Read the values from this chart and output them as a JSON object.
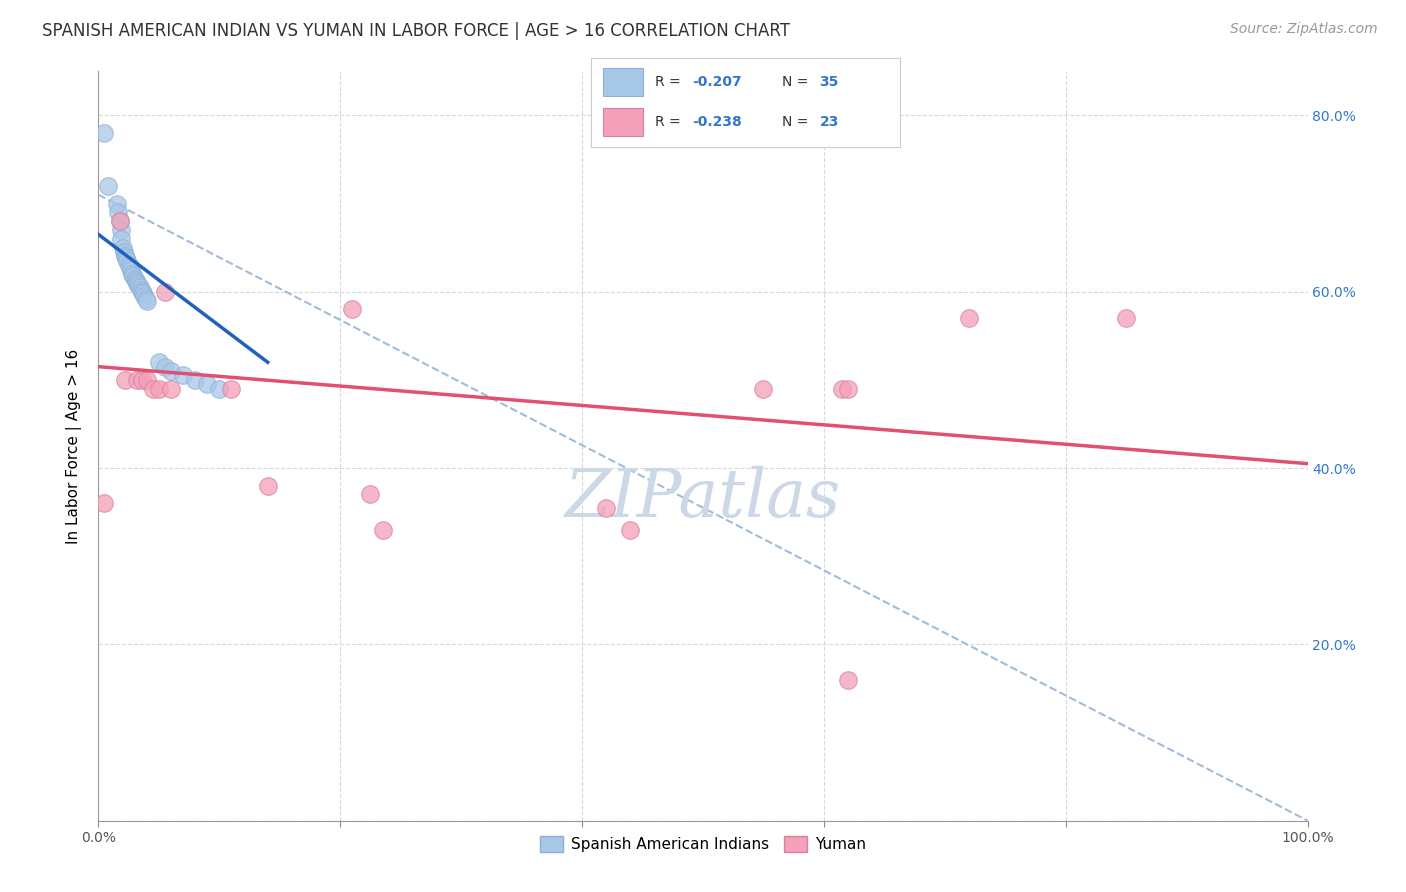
{
  "title": "SPANISH AMERICAN INDIAN VS YUMAN IN LABOR FORCE | AGE > 16 CORRELATION CHART",
  "source": "Source: ZipAtlas.com",
  "ylabel": "In Labor Force | Age > 16",
  "xlim": [
    0.0,
    1.0
  ],
  "ylim": [
    0.0,
    0.85
  ],
  "yticks": [
    0.0,
    0.2,
    0.4,
    0.6,
    0.8
  ],
  "ytick_labels": [
    "",
    "20.0%",
    "40.0%",
    "60.0%",
    "80.0%"
  ],
  "xticks": [
    0.0,
    0.2,
    0.4,
    0.6,
    0.8,
    1.0
  ],
  "xtick_labels": [
    "0.0%",
    "",
    "",
    "",
    "",
    "100.0%"
  ],
  "blue_color": "#a8c8e8",
  "pink_color": "#f4a0b8",
  "blue_line_color": "#2060c0",
  "pink_line_color": "#e05070",
  "dashed_line_color": "#a0bcd8",
  "watermark": "ZIPatlas",
  "legend_label_blue": "Spanish American Indians",
  "legend_label_pink": "Yuman",
  "legend_r_blue": "-0.207",
  "legend_n_blue": "35",
  "legend_r_pink": "-0.238",
  "legend_n_pink": "23",
  "blue_scatter_x": [
    0.005,
    0.008,
    0.015,
    0.016,
    0.018,
    0.019,
    0.019,
    0.02,
    0.021,
    0.022,
    0.023,
    0.024,
    0.025,
    0.026,
    0.027,
    0.028,
    0.029,
    0.03,
    0.031,
    0.032,
    0.033,
    0.034,
    0.035,
    0.036,
    0.037,
    0.038,
    0.039,
    0.04,
    0.05,
    0.055,
    0.06,
    0.07,
    0.08,
    0.09,
    0.1
  ],
  "blue_scatter_y": [
    0.78,
    0.72,
    0.7,
    0.69,
    0.68,
    0.67,
    0.66,
    0.65,
    0.645,
    0.64,
    0.638,
    0.635,
    0.63,
    0.628,
    0.625,
    0.62,
    0.618,
    0.615,
    0.612,
    0.61,
    0.608,
    0.605,
    0.602,
    0.6,
    0.598,
    0.595,
    0.592,
    0.59,
    0.52,
    0.515,
    0.51,
    0.505,
    0.5,
    0.495,
    0.49
  ],
  "pink_scatter_x": [
    0.005,
    0.018,
    0.022,
    0.032,
    0.036,
    0.04,
    0.045,
    0.05,
    0.055,
    0.06,
    0.11,
    0.14,
    0.21,
    0.225,
    0.235,
    0.42,
    0.44,
    0.55,
    0.615,
    0.62,
    0.72,
    0.85,
    0.62
  ],
  "pink_scatter_y": [
    0.36,
    0.68,
    0.5,
    0.5,
    0.5,
    0.5,
    0.49,
    0.49,
    0.6,
    0.49,
    0.49,
    0.38,
    0.58,
    0.37,
    0.33,
    0.355,
    0.33,
    0.49,
    0.49,
    0.16,
    0.57,
    0.57,
    0.49
  ],
  "blue_trend_x": [
    0.0,
    0.14
  ],
  "blue_trend_y": [
    0.665,
    0.52
  ],
  "pink_trend_x": [
    0.0,
    1.0
  ],
  "pink_trend_y": [
    0.515,
    0.405
  ],
  "dashed_trend_x": [
    0.0,
    1.0
  ],
  "dashed_trend_y": [
    0.71,
    0.0
  ],
  "title_fontsize": 12,
  "source_fontsize": 10,
  "axis_label_fontsize": 11,
  "tick_fontsize": 10,
  "watermark_fontsize": 48,
  "watermark_color": "#ccd8e8",
  "right_tick_color": "#3377cc",
  "background_color": "#ffffff",
  "grid_color": "#d8d8d8"
}
